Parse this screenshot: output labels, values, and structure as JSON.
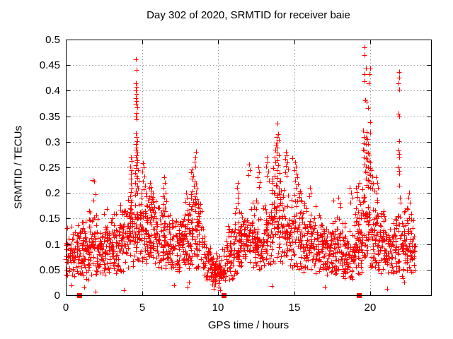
{
  "chart_data": {
    "type": "scatter",
    "title": "Day 302 of 2020, SRMTID for receiver baie",
    "xlabel": "GPS time / hours",
    "ylabel": "SRMTID / TECUs",
    "xlim": [
      0,
      24
    ],
    "ylim": [
      0,
      0.5
    ],
    "xticks": [
      {
        "v": 0,
        "label": "0"
      },
      {
        "v": 5,
        "label": "5"
      },
      {
        "v": 10,
        "label": "10"
      },
      {
        "v": 15,
        "label": "15"
      },
      {
        "v": 20,
        "label": "20"
      }
    ],
    "yticks": [
      {
        "v": 0,
        "label": "0"
      },
      {
        "v": 0.05,
        "label": "0.05"
      },
      {
        "v": 0.1,
        "label": "0.1"
      },
      {
        "v": 0.15,
        "label": "0.15"
      },
      {
        "v": 0.2,
        "label": "0.2"
      },
      {
        "v": 0.25,
        "label": "0.25"
      },
      {
        "v": 0.3,
        "label": "0.3"
      },
      {
        "v": 0.35,
        "label": "0.35"
      },
      {
        "v": 0.4,
        "label": "0.4"
      },
      {
        "v": 0.45,
        "label": "0.45"
      },
      {
        "v": 0.5,
        "label": "0.5"
      }
    ],
    "grid": "dotted",
    "legend": "none",
    "marker": {
      "shape": "plus",
      "color": "#ff0000",
      "size": 7
    },
    "square_marker": {
      "shape": "filled-square",
      "color": "#ff0000",
      "size": 7
    },
    "frame_color": "#000000",
    "grid_color": "#999999",
    "text_color": "#000000",
    "seed": 2020302,
    "band_segments": [
      [
        0,
        0.5,
        40,
        0.085,
        0.05,
        0.035,
        0.145
      ],
      [
        0.5,
        1,
        40,
        0.08,
        0.05,
        0.03,
        0.14
      ],
      [
        1,
        1.5,
        48,
        0.09,
        0.055,
        0.03,
        0.17
      ],
      [
        1.5,
        2,
        48,
        0.095,
        0.06,
        0.03,
        0.21
      ],
      [
        2,
        2.5,
        48,
        0.09,
        0.055,
        0.04,
        0.16
      ],
      [
        2.5,
        3,
        48,
        0.095,
        0.055,
        0.04,
        0.17
      ],
      [
        3,
        3.5,
        48,
        0.1,
        0.055,
        0.04,
        0.18
      ],
      [
        3.5,
        4,
        48,
        0.1,
        0.06,
        0.04,
        0.19
      ],
      [
        4,
        4.5,
        46,
        0.12,
        0.065,
        0.05,
        0.24
      ],
      [
        4.5,
        5,
        50,
        0.14,
        0.07,
        0.06,
        0.27
      ],
      [
        5,
        5.5,
        46,
        0.125,
        0.065,
        0.06,
        0.24
      ],
      [
        5.5,
        6,
        46,
        0.12,
        0.06,
        0.06,
        0.21
      ],
      [
        6,
        6.5,
        46,
        0.11,
        0.06,
        0.05,
        0.21
      ],
      [
        6.5,
        7,
        46,
        0.1,
        0.055,
        0.05,
        0.19
      ],
      [
        7,
        7.5,
        42,
        0.088,
        0.05,
        0.04,
        0.155
      ],
      [
        7.5,
        8,
        46,
        0.1,
        0.055,
        0.05,
        0.19
      ],
      [
        8,
        8.5,
        48,
        0.115,
        0.065,
        0.05,
        0.23
      ],
      [
        8.5,
        9,
        48,
        0.115,
        0.065,
        0.05,
        0.24
      ],
      [
        9,
        9.5,
        42,
        0.075,
        0.045,
        0.03,
        0.14
      ],
      [
        9.5,
        10,
        50,
        0.05,
        0.028,
        0.02,
        0.095
      ],
      [
        10,
        10.5,
        50,
        0.05,
        0.028,
        0.015,
        0.095
      ],
      [
        10.5,
        11,
        46,
        0.075,
        0.05,
        0.03,
        0.19
      ],
      [
        11,
        11.5,
        46,
        0.1,
        0.055,
        0.04,
        0.2
      ],
      [
        11.5,
        12,
        46,
        0.1,
        0.055,
        0.05,
        0.19
      ],
      [
        12,
        12.5,
        46,
        0.105,
        0.06,
        0.05,
        0.22
      ],
      [
        12.5,
        13,
        46,
        0.105,
        0.06,
        0.05,
        0.22
      ],
      [
        13,
        13.5,
        46,
        0.12,
        0.065,
        0.05,
        0.24
      ],
      [
        13.5,
        14,
        48,
        0.14,
        0.075,
        0.06,
        0.3
      ],
      [
        14,
        14.5,
        48,
        0.13,
        0.075,
        0.06,
        0.29
      ],
      [
        14.5,
        15,
        46,
        0.12,
        0.065,
        0.05,
        0.26
      ],
      [
        15,
        15.5,
        46,
        0.115,
        0.065,
        0.05,
        0.25
      ],
      [
        15.5,
        16,
        46,
        0.1,
        0.055,
        0.04,
        0.2
      ],
      [
        16,
        16.5,
        46,
        0.095,
        0.055,
        0.04,
        0.18
      ],
      [
        16.5,
        17,
        44,
        0.09,
        0.05,
        0.04,
        0.17
      ],
      [
        17,
        17.5,
        44,
        0.09,
        0.05,
        0.04,
        0.16
      ],
      [
        17.5,
        18,
        46,
        0.095,
        0.055,
        0.04,
        0.185
      ],
      [
        18,
        18.5,
        44,
        0.08,
        0.05,
        0.03,
        0.16
      ],
      [
        18.5,
        19,
        44,
        0.08,
        0.05,
        0.03,
        0.16
      ],
      [
        19,
        19.5,
        46,
        0.1,
        0.06,
        0.04,
        0.21
      ],
      [
        19.5,
        20,
        48,
        0.135,
        0.075,
        0.06,
        0.29
      ],
      [
        20,
        20.5,
        48,
        0.125,
        0.07,
        0.05,
        0.26
      ],
      [
        20.5,
        21,
        46,
        0.095,
        0.055,
        0.04,
        0.165
      ],
      [
        21,
        21.5,
        44,
        0.075,
        0.045,
        0.03,
        0.14
      ],
      [
        21.5,
        22,
        44,
        0.095,
        0.055,
        0.04,
        0.19
      ],
      [
        22,
        22.5,
        46,
        0.1,
        0.055,
        0.03,
        0.18
      ],
      [
        22.5,
        23,
        46,
        0.095,
        0.05,
        0.04,
        0.165
      ]
    ],
    "feature_points": [
      [
        0.35,
        0.02
      ],
      [
        1.2,
        0.015
      ],
      [
        1.95,
        0.007
      ],
      [
        3.8,
        0.01
      ],
      [
        7.1,
        0.02
      ],
      [
        8.0,
        0.015
      ],
      [
        8.1,
        0.025
      ],
      [
        9.7,
        0.012
      ],
      [
        10.15,
        0.01
      ],
      [
        13.55,
        0.018
      ],
      [
        17.0,
        0.015
      ],
      [
        21.1,
        0.012
      ],
      [
        22.25,
        0.025
      ],
      [
        1.75,
        0.225
      ],
      [
        1.85,
        0.222
      ],
      [
        1.95,
        0.198
      ],
      [
        1.8,
        0.185
      ],
      [
        4.28,
        0.27
      ],
      [
        4.31,
        0.262
      ],
      [
        4.25,
        0.252
      ],
      [
        4.33,
        0.245
      ],
      [
        4.28,
        0.237
      ],
      [
        4.3,
        0.228
      ],
      [
        4.26,
        0.218
      ],
      [
        4.33,
        0.21
      ],
      [
        4.29,
        0.202
      ],
      [
        4.25,
        0.193
      ],
      [
        4.31,
        0.185
      ],
      [
        4.27,
        0.177
      ],
      [
        4.3,
        0.168
      ],
      [
        4.34,
        0.16
      ],
      [
        4.26,
        0.152
      ],
      [
        4.62,
        0.462
      ],
      [
        4.66,
        0.44
      ],
      [
        4.6,
        0.415
      ],
      [
        4.64,
        0.408
      ],
      [
        4.62,
        0.4
      ],
      [
        4.66,
        0.394
      ],
      [
        4.6,
        0.386
      ],
      [
        4.65,
        0.38
      ],
      [
        4.62,
        0.374
      ],
      [
        4.68,
        0.368
      ],
      [
        4.63,
        0.356
      ],
      [
        4.6,
        0.349
      ],
      [
        4.66,
        0.344
      ],
      [
        4.6,
        0.316
      ],
      [
        4.64,
        0.31
      ],
      [
        4.68,
        0.301
      ],
      [
        4.62,
        0.295
      ],
      [
        4.66,
        0.289
      ],
      [
        4.6,
        0.284
      ],
      [
        4.7,
        0.279
      ],
      [
        4.64,
        0.274
      ],
      [
        4.6,
        0.269
      ],
      [
        4.68,
        0.264
      ],
      [
        4.72,
        0.259
      ],
      [
        4.62,
        0.254
      ],
      [
        4.66,
        0.249
      ],
      [
        4.74,
        0.244
      ],
      [
        4.58,
        0.239
      ],
      [
        4.64,
        0.234
      ],
      [
        4.7,
        0.229
      ],
      [
        4.78,
        0.224
      ],
      [
        4.56,
        0.219
      ],
      [
        4.68,
        0.214
      ],
      [
        4.76,
        0.209
      ],
      [
        4.62,
        0.204
      ],
      [
        4.72,
        0.199
      ],
      [
        5.05,
        0.258
      ],
      [
        5.1,
        0.25
      ],
      [
        5.0,
        0.242
      ],
      [
        5.15,
        0.232
      ],
      [
        5.05,
        0.222
      ],
      [
        5.2,
        0.214
      ],
      [
        5.1,
        0.207
      ],
      [
        5.25,
        0.2
      ],
      [
        5.3,
        0.194
      ],
      [
        5.55,
        0.22
      ],
      [
        5.6,
        0.212
      ],
      [
        5.65,
        0.205
      ],
      [
        5.7,
        0.199
      ],
      [
        5.58,
        0.193
      ],
      [
        5.66,
        0.188
      ],
      [
        5.74,
        0.183
      ],
      [
        5.62,
        0.178
      ],
      [
        5.5,
        0.173
      ],
      [
        5.68,
        0.168
      ],
      [
        5.76,
        0.163
      ],
      [
        5.56,
        0.158
      ],
      [
        5.64,
        0.153
      ],
      [
        5.72,
        0.148
      ],
      [
        6.45,
        0.23
      ],
      [
        6.5,
        0.22
      ],
      [
        6.42,
        0.21
      ],
      [
        6.55,
        0.2
      ],
      [
        6.48,
        0.191
      ],
      [
        6.6,
        0.184
      ],
      [
        6.44,
        0.178
      ],
      [
        6.52,
        0.171
      ],
      [
        6.58,
        0.164
      ],
      [
        6.46,
        0.158
      ],
      [
        7.9,
        0.2
      ],
      [
        7.95,
        0.19
      ],
      [
        7.85,
        0.183
      ],
      [
        8.55,
        0.28
      ],
      [
        8.5,
        0.27
      ],
      [
        8.45,
        0.261
      ],
      [
        8.52,
        0.252
      ],
      [
        8.3,
        0.246
      ],
      [
        8.25,
        0.24
      ],
      [
        8.35,
        0.234
      ],
      [
        8.28,
        0.228
      ],
      [
        8.48,
        0.223
      ],
      [
        8.56,
        0.218
      ],
      [
        8.4,
        0.213
      ],
      [
        8.62,
        0.208
      ],
      [
        8.33,
        0.203
      ],
      [
        8.25,
        0.198
      ],
      [
        8.45,
        0.193
      ],
      [
        8.6,
        0.188
      ],
      [
        8.38,
        0.183
      ],
      [
        8.52,
        0.178
      ],
      [
        8.68,
        0.173
      ],
      [
        8.3,
        0.168
      ],
      [
        11.3,
        0.22
      ],
      [
        11.25,
        0.21
      ],
      [
        11.35,
        0.2
      ],
      [
        11.28,
        0.19
      ],
      [
        11.32,
        0.18
      ],
      [
        11.22,
        0.17
      ],
      [
        11.38,
        0.163
      ],
      [
        12.05,
        0.255
      ],
      [
        12.1,
        0.245
      ],
      [
        12.0,
        0.235
      ],
      [
        12.65,
        0.25
      ],
      [
        12.7,
        0.24
      ],
      [
        12.6,
        0.23
      ],
      [
        12.75,
        0.221
      ],
      [
        12.68,
        0.212
      ],
      [
        13.2,
        0.27
      ],
      [
        13.25,
        0.26
      ],
      [
        13.15,
        0.251
      ],
      [
        13.3,
        0.242
      ],
      [
        13.22,
        0.233
      ],
      [
        13.35,
        0.224
      ],
      [
        13.9,
        0.335
      ],
      [
        13.95,
        0.315
      ],
      [
        13.85,
        0.31
      ],
      [
        14.0,
        0.304
      ],
      [
        13.88,
        0.299
      ],
      [
        13.8,
        0.294
      ],
      [
        13.92,
        0.289
      ],
      [
        13.75,
        0.284
      ],
      [
        13.85,
        0.279
      ],
      [
        13.98,
        0.274
      ],
      [
        13.7,
        0.269
      ],
      [
        13.9,
        0.264
      ],
      [
        13.78,
        0.259
      ],
      [
        13.95,
        0.254
      ],
      [
        13.65,
        0.249
      ],
      [
        13.85,
        0.244
      ],
      [
        14.05,
        0.239
      ],
      [
        13.72,
        0.234
      ],
      [
        13.9,
        0.229
      ],
      [
        14.1,
        0.224
      ],
      [
        13.6,
        0.219
      ],
      [
        13.8,
        0.214
      ],
      [
        14.0,
        0.209
      ],
      [
        14.15,
        0.204
      ],
      [
        13.68,
        0.199
      ],
      [
        14.45,
        0.28
      ],
      [
        14.5,
        0.273
      ],
      [
        14.4,
        0.266
      ],
      [
        14.55,
        0.26
      ],
      [
        14.48,
        0.253
      ],
      [
        14.6,
        0.246
      ],
      [
        14.42,
        0.24
      ],
      [
        14.52,
        0.233
      ],
      [
        14.9,
        0.268
      ],
      [
        15.05,
        0.259
      ],
      [
        15.1,
        0.251
      ],
      [
        15.0,
        0.244
      ],
      [
        15.15,
        0.238
      ],
      [
        15.2,
        0.231
      ],
      [
        15.08,
        0.224
      ],
      [
        15.25,
        0.217
      ],
      [
        15.12,
        0.21
      ],
      [
        15.3,
        0.2
      ],
      [
        16.05,
        0.21
      ],
      [
        16.1,
        0.2
      ],
      [
        16.0,
        0.194
      ],
      [
        17.6,
        0.185
      ],
      [
        17.9,
        0.19
      ],
      [
        18.0,
        0.18
      ],
      [
        18.05,
        0.172
      ],
      [
        18.65,
        0.21
      ],
      [
        18.75,
        0.2
      ],
      [
        18.85,
        0.19
      ],
      [
        18.7,
        0.181
      ],
      [
        19.05,
        0.21
      ],
      [
        19.12,
        0.202
      ],
      [
        19.2,
        0.213
      ],
      [
        19.3,
        0.22
      ],
      [
        19.15,
        0.192
      ],
      [
        19.25,
        0.185
      ],
      [
        19.35,
        0.178
      ],
      [
        19.08,
        0.17
      ],
      [
        19.22,
        0.163
      ],
      [
        19.38,
        0.157
      ],
      [
        19.3,
        0.15
      ],
      [
        19.1,
        0.145
      ],
      [
        19.28,
        0.14
      ],
      [
        19.63,
        0.485
      ],
      [
        19.63,
        0.47
      ],
      [
        19.72,
        0.443
      ],
      [
        20.0,
        0.443
      ],
      [
        19.63,
        0.432
      ],
      [
        19.95,
        0.432
      ],
      [
        19.63,
        0.419
      ],
      [
        19.93,
        0.415
      ],
      [
        19.67,
        0.381
      ],
      [
        19.77,
        0.379
      ],
      [
        19.86,
        0.366
      ],
      [
        20.0,
        0.338
      ],
      [
        19.54,
        0.322
      ],
      [
        19.77,
        0.319
      ],
      [
        20.0,
        0.318
      ],
      [
        19.6,
        0.31
      ],
      [
        19.7,
        0.308
      ],
      [
        19.82,
        0.305
      ],
      [
        19.58,
        0.297
      ],
      [
        19.72,
        0.296
      ],
      [
        19.88,
        0.295
      ],
      [
        19.55,
        0.285
      ],
      [
        19.65,
        0.283
      ],
      [
        19.75,
        0.28
      ],
      [
        19.85,
        0.278
      ],
      [
        19.95,
        0.275
      ],
      [
        19.6,
        0.27
      ],
      [
        19.7,
        0.268
      ],
      [
        19.8,
        0.265
      ],
      [
        19.9,
        0.262
      ],
      [
        20.0,
        0.26
      ],
      [
        19.62,
        0.255
      ],
      [
        19.74,
        0.252
      ],
      [
        19.86,
        0.25
      ],
      [
        19.98,
        0.248
      ],
      [
        20.08,
        0.245
      ],
      [
        19.68,
        0.242
      ],
      [
        19.78,
        0.24
      ],
      [
        19.9,
        0.238
      ],
      [
        20.02,
        0.235
      ],
      [
        20.12,
        0.232
      ],
      [
        19.72,
        0.228
      ],
      [
        19.84,
        0.225
      ],
      [
        19.96,
        0.222
      ],
      [
        20.08,
        0.22
      ],
      [
        20.2,
        0.218
      ],
      [
        19.76,
        0.215
      ],
      [
        19.88,
        0.212
      ],
      [
        20.0,
        0.21
      ],
      [
        20.15,
        0.208
      ],
      [
        20.3,
        0.205
      ],
      [
        20.35,
        0.23
      ],
      [
        20.45,
        0.22
      ],
      [
        20.5,
        0.21
      ],
      [
        20.4,
        0.2
      ],
      [
        21.9,
        0.437
      ],
      [
        21.93,
        0.425
      ],
      [
        21.88,
        0.415
      ],
      [
        21.9,
        0.402
      ],
      [
        21.88,
        0.355
      ],
      [
        21.92,
        0.349
      ],
      [
        21.9,
        0.301
      ],
      [
        21.87,
        0.283
      ],
      [
        21.9,
        0.276
      ],
      [
        21.93,
        0.27
      ],
      [
        21.88,
        0.25
      ],
      [
        21.91,
        0.243
      ],
      [
        21.89,
        0.238
      ],
      [
        21.9,
        0.214
      ],
      [
        21.95,
        0.19
      ],
      [
        22.0,
        0.181
      ],
      [
        22.55,
        0.2
      ],
      [
        22.5,
        0.19
      ],
      [
        22.6,
        0.181
      ]
    ],
    "square_points": [
      [
        0.89,
        0
      ],
      [
        10.35,
        0
      ],
      [
        19.25,
        0
      ]
    ]
  }
}
